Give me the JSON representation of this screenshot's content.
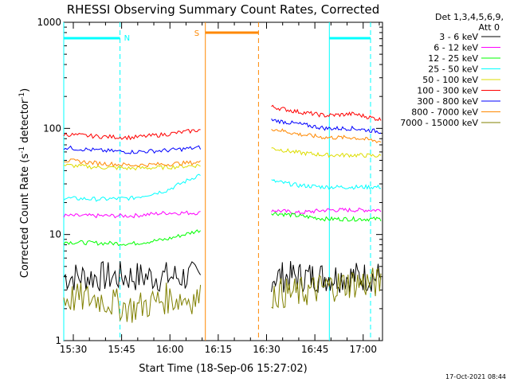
{
  "chart_data": {
    "type": "line",
    "title": "RHESSI Observing Summary Count Rates, Corrected",
    "xlabel": "Start Time (18-Sep-06 15:27:02)",
    "ylabel": "Corrected Count Rate (s",
    "ylabel_sup1": "-1",
    "ylabel_mid": " detector",
    "ylabel_sup2": "-1",
    "ylabel_end": ")",
    "y_scale": "log",
    "ylim": [
      1,
      1000
    ],
    "xlim": [
      "15:27:02",
      "17:06:00"
    ],
    "x_tick_labels": [
      "15:30",
      "15:45",
      "16:00",
      "16:15",
      "16:30",
      "16:45",
      "17:00"
    ],
    "y_tick_labels": [
      "1",
      "10",
      "100",
      "1000"
    ],
    "legend": {
      "position": "right",
      "header": [
        "Det 1,3,4,5,6,9,",
        "Att 0"
      ]
    },
    "series": [
      {
        "name": "3 - 6 keV",
        "color": "#000000",
        "seg1": [
          4,
          4,
          4,
          4,
          4
        ],
        "seg2": [
          4,
          4,
          4,
          4,
          4
        ]
      },
      {
        "name": "6 - 12 keV",
        "color": "#ff00ff",
        "seg1": [
          15,
          15,
          15,
          16,
          16
        ],
        "seg2": [
          17,
          16,
          17,
          17,
          17
        ]
      },
      {
        "name": "12 - 25 keV",
        "color": "#00ff00",
        "seg1": [
          8.5,
          8.3,
          8.2,
          9,
          11
        ],
        "seg2": [
          16,
          15,
          14,
          14,
          14
        ]
      },
      {
        "name": "25 - 50 keV",
        "color": "#00ffff",
        "seg1": [
          22,
          21.5,
          22,
          26,
          37
        ],
        "seg2": [
          32,
          29,
          28,
          28,
          28
        ]
      },
      {
        "name": "50 - 100 keV",
        "color": "#dddd00",
        "seg1": [
          45,
          43,
          42,
          43,
          45
        ],
        "seg2": [
          65,
          59,
          56,
          56,
          55
        ]
      },
      {
        "name": "100 - 300 keV",
        "color": "#ff0000",
        "seg1": [
          88,
          84,
          82,
          88,
          97
        ],
        "seg2": [
          160,
          143,
          132,
          137,
          121
        ]
      },
      {
        "name": "300 - 800 keV",
        "color": "#0000ff",
        "seg1": [
          66,
          62,
          60,
          62,
          66
        ],
        "seg2": [
          120,
          110,
          100,
          100,
          93
        ]
      },
      {
        "name": "800 - 7000 keV",
        "color": "#ff8800",
        "seg1": [
          50,
          47,
          45,
          46,
          48
        ],
        "seg2": [
          100,
          88,
          82,
          82,
          75
        ]
      },
      {
        "name": "7000 - 15000 keV",
        "color": "#808000",
        "seg1": [
          2.5,
          2.5,
          2,
          2.5,
          2.5
        ],
        "seg2": [
          2.8,
          2.8,
          3.2,
          3.5,
          3.5
        ]
      }
    ],
    "segment_times": {
      "seg1": [
        "15:27:02",
        "16:09:30"
      ],
      "seg2": [
        "16:31:30",
        "17:05:30"
      ]
    },
    "flags": [
      {
        "label": "N",
        "color": "#00ffff",
        "start": "15:27:02",
        "end": "15:44:30",
        "resume": "16:49:30"
      },
      {
        "label": "S",
        "color": "#ff8800",
        "start": "16:11:00",
        "end": "16:27:30"
      }
    ],
    "footer": "17-Oct-2021 08:44"
  }
}
